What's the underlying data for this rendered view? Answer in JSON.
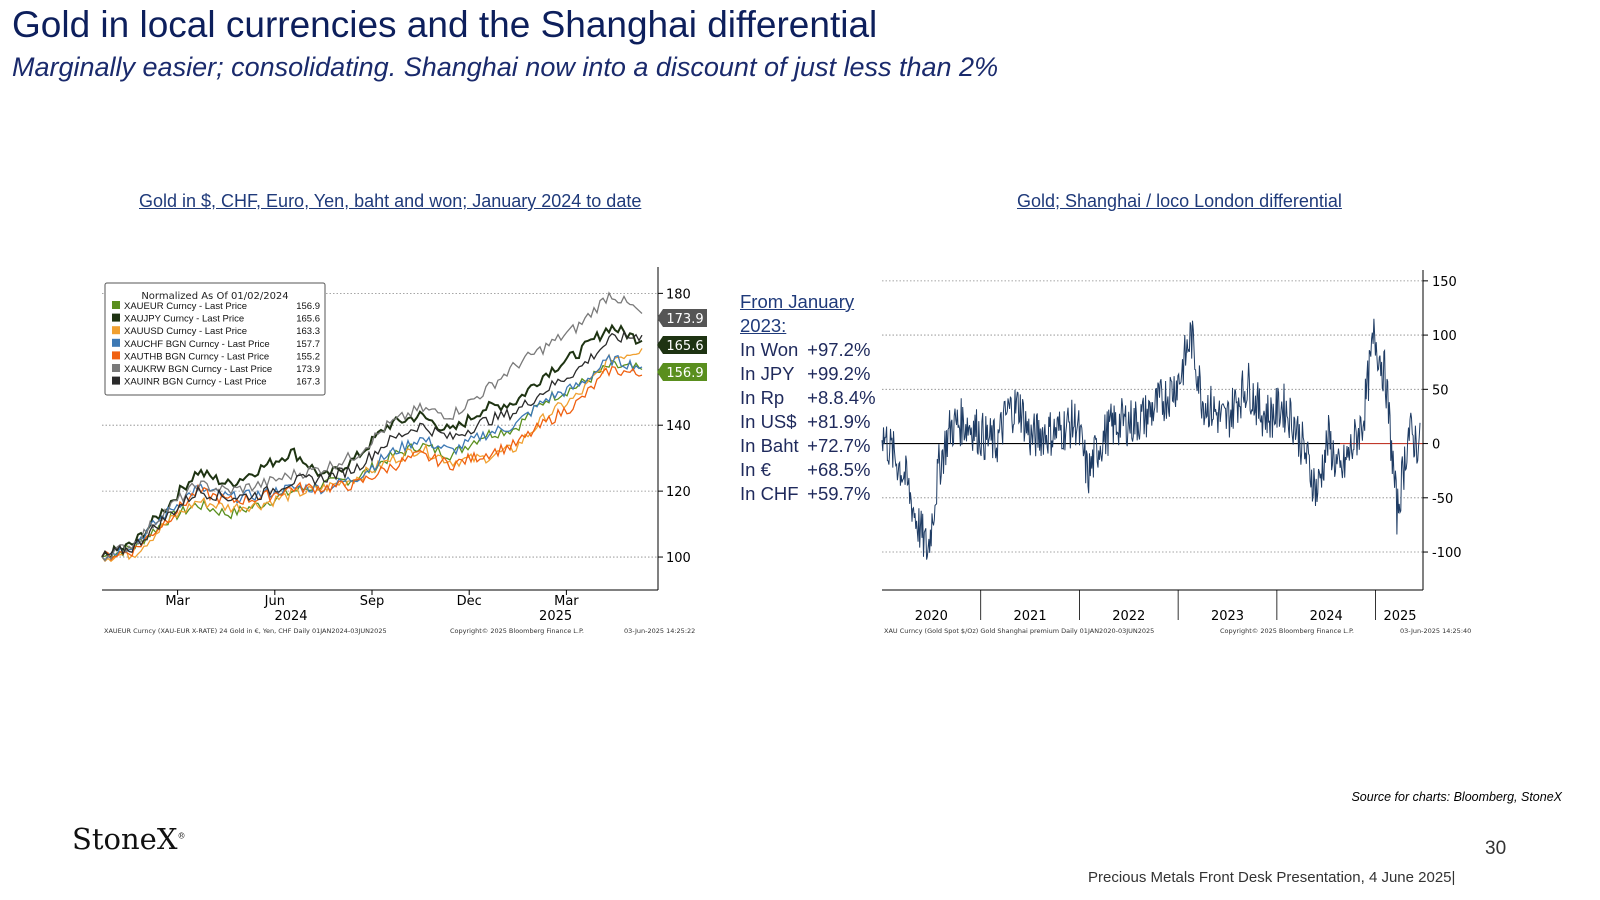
{
  "page": {
    "title": "Gold in local currencies and the Shanghai differential",
    "subtitle": "Marginally easier; consolidating.  Shanghai now into a discount of just less than 2%",
    "source": "Source for charts: Bloomberg, StoneX",
    "logo": "StoneX",
    "logo_mark": "®",
    "page_number": "30",
    "footer": "Precious Metals Front Desk Presentation, 4 June 2025|"
  },
  "performance": {
    "heading_line1": "From January",
    "heading_line2": "2023:",
    "rows": [
      {
        "label": "In Won",
        "value": "+97.2%"
      },
      {
        "label": "In JPY",
        "value": "+99.2%"
      },
      {
        "label": "In Rp",
        "value": "+8.8.4%"
      },
      {
        "label": "In US$",
        "value": "+81.9%"
      },
      {
        "label": "In Baht",
        "value": "+72.7%"
      },
      {
        "label": "In €",
        "value": "+68.5%"
      },
      {
        "label": "In CHF",
        "value": "+59.7%"
      }
    ]
  },
  "chart_data": [
    {
      "type": "line",
      "title": "Gold in $, CHF, Euro, Yen, baht and won; January 2024 to date",
      "legend_title": "Normalized As Of 01/02/2024",
      "legend_position": "top-left",
      "x_tick_labels": [
        "Mar",
        "Jun",
        "Sep",
        "Dec",
        "Mar"
      ],
      "x_year_labels": [
        "2024",
        "2025"
      ],
      "y_ticks": [
        100,
        120,
        140,
        180
      ],
      "y_tick_labels": [
        "100",
        "120",
        "140",
        "180"
      ],
      "ylim": [
        90,
        188
      ],
      "grid": true,
      "footer_left": "XAUEUR Curncy (XAU-EUR X-RATE) 24 Gold in €, Yen, CHF  Daily 01JAN2024-03JUN2025",
      "footer_mid": "Copyright© 2025 Bloomberg Finance L.P.",
      "footer_right": "03-Jun-2025 14:25:22",
      "value_tags": [
        "173.9",
        "165.6",
        "156.9"
      ],
      "series": [
        {
          "name": "XAUEUR Curncy - Last Price",
          "last": "156.9",
          "color": "#5a8f1e",
          "values": [
            100,
            103,
            111,
            116,
            113,
            116,
            120,
            122,
            124,
            130,
            134,
            131,
            137,
            139,
            148,
            152,
            158,
            156.9
          ]
        },
        {
          "name": "XAUJPY Curncy - Last Price",
          "last": "165.6",
          "color": "#1e3312",
          "values": [
            100,
            104,
            115,
            126,
            122,
            127,
            132,
            124,
            130,
            140,
            143,
            138,
            145,
            147,
            156,
            162,
            170,
            165.6
          ]
        },
        {
          "name": "XAUUSD Curncy - Last Price",
          "last": "163.3",
          "color": "#f0a030",
          "values": [
            100,
            101,
            110,
            117,
            115,
            116,
            119,
            121,
            124,
            129,
            133,
            129,
            130,
            133,
            143,
            149,
            160,
            163.3
          ]
        },
        {
          "name": "XAUCHF BGN Curncy - Last Price",
          "last": "157.7",
          "color": "#3c78b4",
          "values": [
            100,
            104,
            113,
            121,
            118,
            119,
            121,
            121,
            124,
            131,
            136,
            132,
            137,
            140,
            148,
            152,
            160,
            157.7
          ]
        },
        {
          "name": "XAUTHB BGN Curncy - Last Price",
          "last": "155.2",
          "color": "#f06010",
          "values": [
            100,
            102,
            111,
            120,
            117,
            118,
            121,
            121,
            122,
            127,
            131,
            128,
            131,
            134,
            141,
            147,
            157,
            155.2
          ]
        },
        {
          "name": "XAUKRW BGN Curncy - Last Price",
          "last": "173.9",
          "color": "#7a7a7a",
          "values": [
            100,
            104,
            114,
            122,
            120,
            122,
            125,
            127,
            131,
            140,
            145,
            143,
            150,
            158,
            164,
            170,
            180,
            173.9
          ]
        },
        {
          "name": "XAUINR BGN Curncy - Last Price",
          "last": "167.3",
          "color": "#2a2a2a",
          "values": [
            100,
            103,
            112,
            120,
            118,
            119,
            123,
            124,
            127,
            135,
            140,
            136,
            141,
            144,
            151,
            157,
            166,
            167.3
          ]
        }
      ]
    },
    {
      "type": "line",
      "title": "Gold; Shanghai / loco London differential",
      "x_tick_labels": [
        "2020",
        "2021",
        "2022",
        "2023",
        "2024",
        "2025"
      ],
      "y_ticks": [
        150,
        100,
        50,
        0,
        -50,
        -100
      ],
      "y_tick_labels": [
        "150",
        "100",
        "50",
        "0",
        "-50",
        "-100"
      ],
      "ylim": [
        -135,
        160
      ],
      "grid": true,
      "footer_left": "XAU Curncy (Gold Spot  $/Oz) Gold Shanghai premium  Daily 01JAN2020-03JUN2025",
      "footer_mid": "Copyright© 2025 Bloomberg Finance L.P.",
      "footer_right": "03-Jun-2025 14:25:40",
      "series": [
        {
          "name": "Gold Shanghai premium",
          "color": "#1f3c64",
          "values": [
            10,
            -10,
            -30,
            -70,
            -100,
            -20,
            15,
            20,
            15,
            5,
            0,
            30,
            35,
            5,
            10,
            10,
            15,
            20,
            -30,
            0,
            15,
            20,
            20,
            25,
            35,
            45,
            60,
            100,
            40,
            30,
            20,
            40,
            55,
            30,
            25,
            35,
            20,
            -10,
            -45,
            5,
            -30,
            -5,
            20,
            100,
            60,
            -65,
            10,
            -2
          ]
        }
      ]
    }
  ]
}
